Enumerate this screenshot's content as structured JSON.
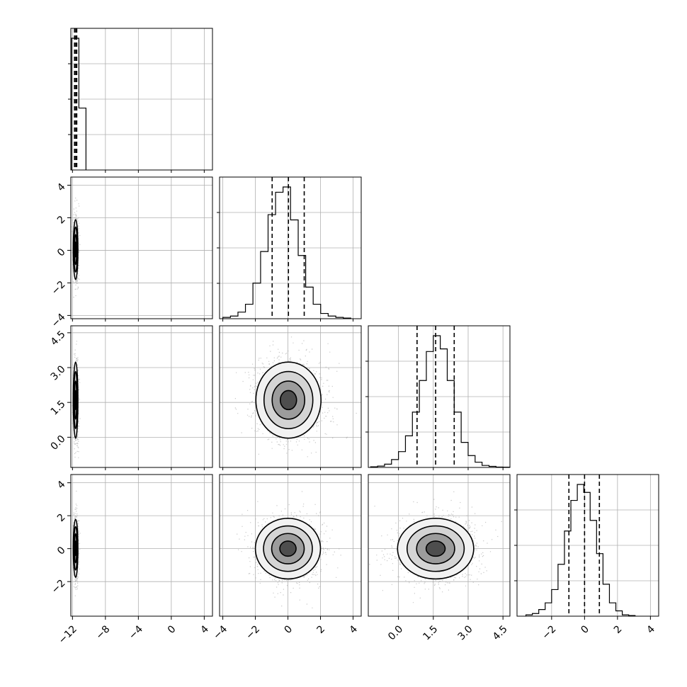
{
  "chart_data": {
    "type": "corner",
    "title": "",
    "parameters": [
      {
        "index": 0,
        "label": "",
        "range": [
          -12.2,
          5.0
        ],
        "ticks": [
          -12,
          -8,
          -4,
          0,
          4
        ],
        "tick_labels": [
          "−12",
          "−8",
          "−4",
          "0",
          "4"
        ]
      },
      {
        "index": 1,
        "label": "",
        "range": [
          -4.2,
          4.5
        ],
        "ticks": [
          -4,
          -2,
          0,
          2,
          4
        ],
        "tick_labels": [
          "−4",
          "−2",
          "0",
          "2",
          "4"
        ]
      },
      {
        "index": 2,
        "label": "",
        "range": [
          -1.3,
          4.8
        ],
        "ticks": [
          0.0,
          1.5,
          3.0,
          4.5
        ],
        "tick_labels": [
          "0.0",
          "1.5",
          "3.0",
          "4.5"
        ]
      },
      {
        "index": 3,
        "label": "",
        "range": [
          -4.1,
          4.5
        ],
        "ticks": [
          -2,
          0,
          2,
          4
        ],
        "tick_labels": [
          "−2",
          "0",
          "2",
          "4"
        ]
      }
    ],
    "marginals": [
      {
        "param": 0,
        "bin_edges": [
          -12.1,
          -11.22,
          -10.36
        ],
        "counts": [
          1.0,
          0.47
        ],
        "quantiles": [
          -11.75,
          -11.6,
          -11.48
        ]
      },
      {
        "param": 1,
        "bin_edges": [
          -4.0,
          -3.53,
          -3.07,
          -2.61,
          -2.15,
          -1.68,
          -1.22,
          -0.76,
          -0.3,
          0.16,
          0.63,
          1.09,
          1.55,
          2.01,
          2.47,
          2.94,
          3.4,
          3.86
        ],
        "counts": [
          0.01,
          0.02,
          0.05,
          0.11,
          0.27,
          0.51,
          0.79,
          0.96,
          1.0,
          0.75,
          0.48,
          0.24,
          0.11,
          0.04,
          0.02,
          0.01,
          0.005
        ],
        "quantiles": [
          -0.97,
          0.03,
          1.0
        ]
      },
      {
        "param": 2,
        "bin_edges": [
          -1.2,
          -0.9,
          -0.6,
          -0.3,
          0.0,
          0.3,
          0.6,
          0.9,
          1.2,
          1.5,
          1.8,
          2.1,
          2.4,
          2.7,
          3.0,
          3.3,
          3.6,
          3.9,
          4.2,
          4.5,
          4.8
        ],
        "counts": [
          0.005,
          0.01,
          0.025,
          0.06,
          0.12,
          0.24,
          0.42,
          0.66,
          0.88,
          1.0,
          0.9,
          0.66,
          0.42,
          0.19,
          0.09,
          0.04,
          0.015,
          0.008,
          0.003,
          0.002
        ],
        "quantiles": [
          0.8,
          1.6,
          2.4
        ]
      },
      {
        "param": 3,
        "bin_edges": [
          -3.56,
          -3.17,
          -2.78,
          -2.39,
          -2.0,
          -1.61,
          -1.22,
          -0.83,
          -0.44,
          -0.05,
          0.34,
          0.73,
          1.12,
          1.51,
          1.9,
          2.29,
          2.68,
          3.07
        ],
        "counts": [
          0.01,
          0.02,
          0.05,
          0.1,
          0.2,
          0.39,
          0.64,
          0.87,
          0.99,
          0.93,
          0.72,
          0.47,
          0.24,
          0.1,
          0.04,
          0.01,
          0.005
        ],
        "quantiles": [
          -0.95,
          0.0,
          0.9
        ]
      }
    ],
    "joint": [
      {
        "x": 0,
        "y": 1,
        "center": [
          -11.62,
          0.05
        ],
        "sigma": [
          0.14,
          0.92
        ],
        "levels": [
          0.5,
          1.0,
          1.5,
          2.0
        ]
      },
      {
        "x": 0,
        "y": 2,
        "center": [
          -11.62,
          1.6
        ],
        "sigma": [
          0.14,
          0.82
        ],
        "levels": [
          0.5,
          1.0,
          1.5,
          2.0
        ]
      },
      {
        "x": 0,
        "y": 3,
        "center": [
          -11.62,
          0.02
        ],
        "sigma": [
          0.14,
          0.88
        ],
        "levels": [
          0.5,
          1.0,
          1.5,
          2.0
        ]
      },
      {
        "x": 1,
        "y": 2,
        "center": [
          0.03,
          1.6
        ],
        "sigma": [
          1.0,
          0.82
        ],
        "levels": [
          0.5,
          1.0,
          1.5,
          2.0
        ]
      },
      {
        "x": 1,
        "y": 3,
        "center": [
          0.0,
          0.0
        ],
        "sigma": [
          1.0,
          0.92
        ],
        "levels": [
          0.5,
          1.0,
          1.5,
          2.0
        ]
      },
      {
        "x": 2,
        "y": 3,
        "center": [
          1.6,
          0.0
        ],
        "sigma": [
          0.82,
          0.92
        ],
        "levels": [
          0.5,
          1.0,
          1.5,
          2.0
        ]
      }
    ],
    "grid": true,
    "legend": "none"
  }
}
